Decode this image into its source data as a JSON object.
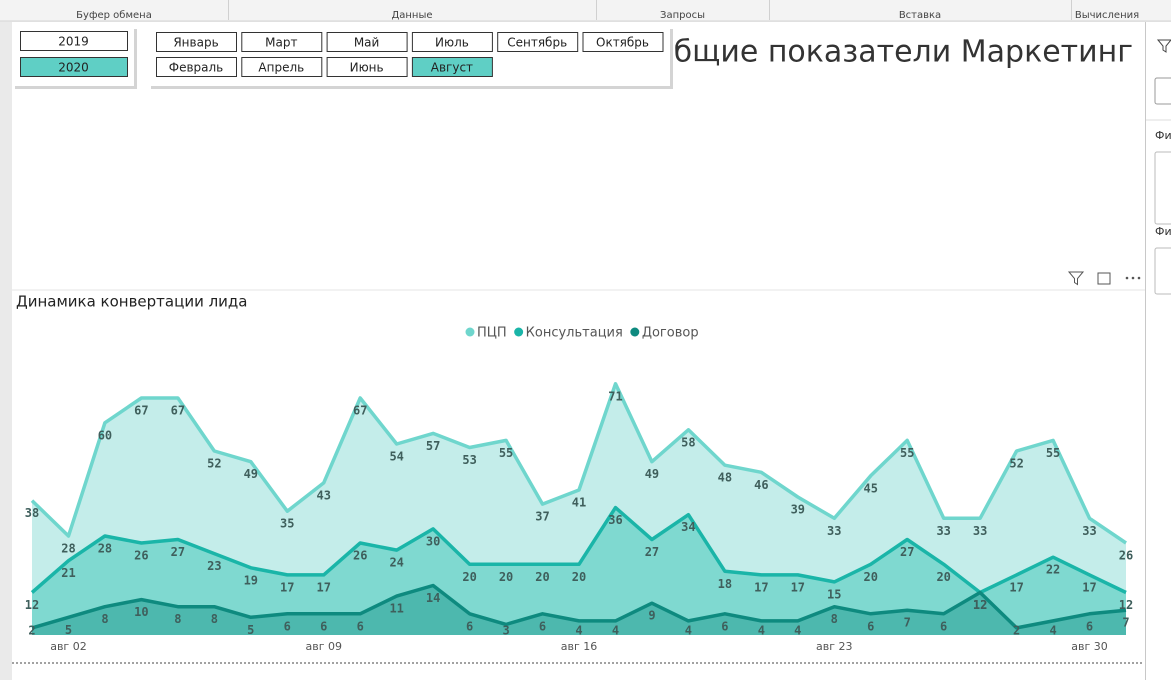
{
  "ribbon": {
    "groups": [
      "Буфер обмена",
      "Данные",
      "Запросы",
      "Вставка",
      "Вычисления"
    ]
  },
  "report_title": "Общие показатели Маркетинг",
  "slicers": {
    "years": [
      {
        "label": "2019",
        "selected": false
      },
      {
        "label": "2020",
        "selected": true
      }
    ],
    "months": [
      [
        {
          "label": "Январь",
          "selected": false
        },
        {
          "label": "Март",
          "selected": false
        },
        {
          "label": "Май",
          "selected": false
        },
        {
          "label": "Июль",
          "selected": false
        },
        {
          "label": "Сентябрь",
          "selected": false
        },
        {
          "label": "Октябрь",
          "selected": false
        }
      ],
      [
        {
          "label": "Февраль",
          "selected": false
        },
        {
          "label": "Апрель",
          "selected": false
        },
        {
          "label": "Июнь",
          "selected": false
        },
        {
          "label": "Август",
          "selected": true
        }
      ]
    ]
  },
  "filter_pane": {
    "labels": [
      "Фи",
      "Фи"
    ]
  },
  "chart_data": {
    "type": "area",
    "title": "Динамика конвертации лида",
    "categories": [
      null,
      "авг 02",
      null,
      null,
      null,
      null,
      null,
      null,
      "авг 09",
      null,
      null,
      null,
      null,
      null,
      null,
      "авг 16",
      null,
      null,
      null,
      null,
      null,
      null,
      "авг 23",
      null,
      null,
      null,
      null,
      null,
      null,
      "авг 30",
      null
    ],
    "ylim": [
      0,
      80
    ],
    "series": [
      {
        "name": "ПЦП",
        "color": "#6fd6cd",
        "fill": "#c4edea",
        "values": [
          38,
          28,
          60,
          67,
          67,
          52,
          49,
          35,
          43,
          67,
          54,
          57,
          53,
          55,
          37,
          41,
          71,
          49,
          58,
          48,
          46,
          39,
          33,
          45,
          55,
          33,
          33,
          52,
          55,
          33,
          26
        ]
      },
      {
        "name": "Консультация",
        "color": "#1ab5a8",
        "fill": "#7fd9d0",
        "values": [
          12,
          21,
          28,
          26,
          27,
          23,
          19,
          17,
          17,
          26,
          24,
          30,
          20,
          20,
          20,
          20,
          36,
          27,
          34,
          18,
          17,
          17,
          15,
          20,
          27,
          20,
          12,
          17,
          22,
          17,
          12
        ]
      },
      {
        "name": "Договор",
        "color": "#0e8a7f",
        "fill": "#4db8ae",
        "values": [
          2,
          5,
          8,
          10,
          8,
          8,
          5,
          6,
          6,
          6,
          11,
          14,
          6,
          3,
          6,
          4,
          4,
          9,
          4,
          6,
          4,
          4,
          8,
          6,
          7,
          6,
          12,
          2,
          4,
          6,
          7
        ]
      }
    ]
  }
}
